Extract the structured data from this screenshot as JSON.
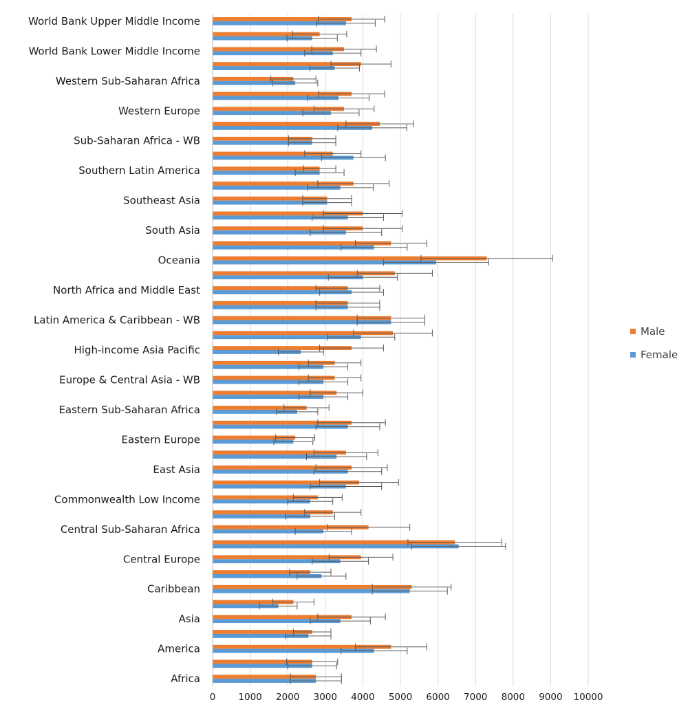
{
  "chart_data": {
    "type": "bar",
    "orientation": "horizontal",
    "grid": true,
    "legend_position": "right",
    "xlim": [
      0,
      10000
    ],
    "x_ticks": [
      "0",
      "1000",
      "2000",
      "3000",
      "4000",
      "5000",
      "6000",
      "7000",
      "8000",
      "9000",
      "10000"
    ],
    "colors": {
      "Male": "#ED7D31",
      "Female": "#5B9BD5",
      "grid": "#D9D9D9",
      "error_bar": "#595959"
    },
    "legend": [
      "Male",
      "Female"
    ],
    "rows_top_to_bottom": [
      {
        "label": "World Bank Upper Middle Income",
        "male": 3700,
        "male_err": 880,
        "female": 3550,
        "female_err": 780
      },
      {
        "label": "",
        "male": 2850,
        "male_err": 720,
        "female": 2650,
        "female_err": 670
      },
      {
        "label": "World Bank Lower Middle Income",
        "male": 3500,
        "male_err": 860,
        "female": 3200,
        "female_err": 750
      },
      {
        "label": "",
        "male": 3950,
        "male_err": 800,
        "female": 3250,
        "female_err": 660
      },
      {
        "label": "Western Sub-Saharan Africa",
        "male": 2150,
        "male_err": 600,
        "female": 2200,
        "female_err": 600
      },
      {
        "label": "",
        "male": 3700,
        "male_err": 880,
        "female": 3350,
        "female_err": 820
      },
      {
        "label": "Western Europe",
        "male": 3500,
        "male_err": 800,
        "female": 3150,
        "female_err": 750
      },
      {
        "label": "",
        "male": 4450,
        "male_err": 900,
        "female": 4250,
        "female_err": 920
      },
      {
        "label": "Sub-Saharan Africa - WB",
        "male": 2650,
        "male_err": 630,
        "female": 2650,
        "female_err": 630
      },
      {
        "label": "",
        "male": 3200,
        "male_err": 750,
        "female": 3750,
        "female_err": 850
      },
      {
        "label": "Southern Latin America",
        "male": 2850,
        "male_err": 430,
        "female": 2850,
        "female_err": 650
      },
      {
        "label": "",
        "male": 3750,
        "male_err": 950,
        "female": 3400,
        "female_err": 880
      },
      {
        "label": "Southeast Asia",
        "male": 3050,
        "male_err": 650,
        "female": 3050,
        "female_err": 650
      },
      {
        "label": "",
        "male": 4000,
        "male_err": 1050,
        "female": 3600,
        "female_err": 950
      },
      {
        "label": "South Asia",
        "male": 4000,
        "male_err": 1050,
        "female": 3550,
        "female_err": 950
      },
      {
        "label": "",
        "male": 4750,
        "male_err": 950,
        "female": 4300,
        "female_err": 880
      },
      {
        "label": "Oceania",
        "male": 7300,
        "male_err": 1750,
        "female": 5950,
        "female_err": 1400
      },
      {
        "label": "",
        "male": 4850,
        "male_err": 1000,
        "female": 4000,
        "female_err": 920
      },
      {
        "label": "North Africa and Middle East",
        "male": 3600,
        "male_err": 850,
        "female": 3700,
        "female_err": 850
      },
      {
        "label": "",
        "male": 3600,
        "male_err": 850,
        "female": 3600,
        "female_err": 850
      },
      {
        "label": "Latin America & Caribbean - WB",
        "male": 4750,
        "male_err": 900,
        "female": 4750,
        "female_err": 900
      },
      {
        "label": "",
        "male": 4800,
        "male_err": 1050,
        "female": 3950,
        "female_err": 900
      },
      {
        "label": "High-income Asia Pacific",
        "male": 3700,
        "male_err": 850,
        "female": 2350,
        "female_err": 600
      },
      {
        "label": "",
        "male": 3250,
        "male_err": 700,
        "female": 2950,
        "female_err": 650
      },
      {
        "label": "Europe & Central Asia - WB",
        "male": 3250,
        "male_err": 700,
        "female": 2950,
        "female_err": 650
      },
      {
        "label": "",
        "male": 3300,
        "male_err": 700,
        "female": 2950,
        "female_err": 650
      },
      {
        "label": "Eastern Sub-Saharan Africa",
        "male": 2500,
        "male_err": 600,
        "female": 2250,
        "female_err": 550
      },
      {
        "label": "",
        "male": 3700,
        "male_err": 900,
        "female": 3600,
        "female_err": 850
      },
      {
        "label": "Eastern Europe",
        "male": 2200,
        "male_err": 520,
        "female": 2150,
        "female_err": 520
      },
      {
        "label": "",
        "male": 3550,
        "male_err": 850,
        "female": 3300,
        "female_err": 800
      },
      {
        "label": "East Asia",
        "male": 3700,
        "male_err": 950,
        "female": 3600,
        "female_err": 900
      },
      {
        "label": "",
        "male": 3900,
        "male_err": 1050,
        "female": 3550,
        "female_err": 950
      },
      {
        "label": "Commonwealth Low Income",
        "male": 2800,
        "male_err": 650,
        "female": 2600,
        "female_err": 600
      },
      {
        "label": "",
        "male": 3200,
        "male_err": 750,
        "female": 2600,
        "female_err": 650
      },
      {
        "label": "Central Sub-Saharan Africa",
        "male": 4150,
        "male_err": 1100,
        "female": 2950,
        "female_err": 750
      },
      {
        "label": "",
        "male": 6450,
        "male_err": 1250,
        "female": 6550,
        "female_err": 1250
      },
      {
        "label": "Central Europe",
        "male": 3950,
        "male_err": 850,
        "female": 3400,
        "female_err": 750
      },
      {
        "label": "",
        "male": 2600,
        "male_err": 550,
        "female": 2900,
        "female_err": 650
      },
      {
        "label": "Caribbean",
        "male": 5300,
        "male_err": 1050,
        "female": 5250,
        "female_err": 1000
      },
      {
        "label": "",
        "male": 2150,
        "male_err": 550,
        "female": 1750,
        "female_err": 500
      },
      {
        "label": "Asia",
        "male": 3700,
        "male_err": 900,
        "female": 3400,
        "female_err": 800
      },
      {
        "label": "",
        "male": 2650,
        "male_err": 500,
        "female": 2550,
        "female_err": 600
      },
      {
        "label": "America",
        "male": 4750,
        "male_err": 950,
        "female": 4300,
        "female_err": 880
      },
      {
        "label": "",
        "male": 2650,
        "male_err": 680,
        "female": 2650,
        "female_err": 650
      },
      {
        "label": "Africa",
        "male": 2750,
        "male_err": 680,
        "female": 2750,
        "female_err": 680
      }
    ]
  }
}
